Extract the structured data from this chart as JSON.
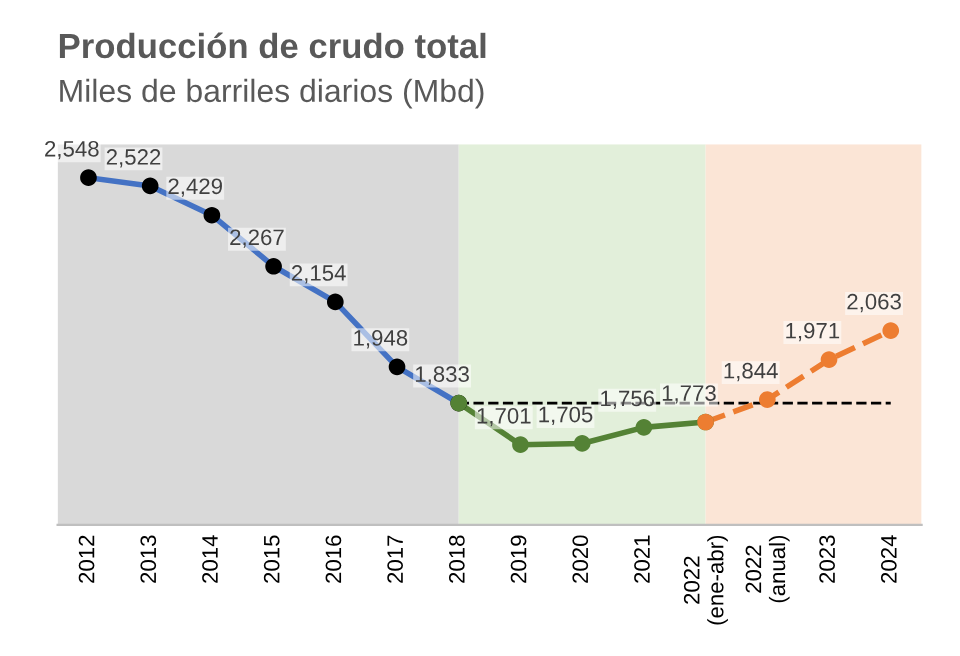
{
  "chart_data": {
    "type": "line",
    "title": "Producción de crudo total",
    "subtitle": "Miles de barriles diarios (Mbd)",
    "categories": [
      "2012",
      "2013",
      "2014",
      "2015",
      "2016",
      "2017",
      "2018",
      "2019",
      "2020",
      "2021",
      "2022\n(ene-abr)",
      "2022\n(anual)",
      "2023",
      "2024"
    ],
    "series": [
      {
        "color": "#4472c4",
        "colors": [
          "#000000",
          "#000000",
          "#000000",
          "#000000",
          "#000000",
          "#000000",
          "#000000",
          null,
          null,
          null,
          null,
          null,
          null,
          null
        ],
        "marker": "circle",
        "line_style": "solid",
        "values": [
          2548,
          2522,
          2429,
          2267,
          2154,
          1948,
          1833,
          null,
          null,
          null,
          null,
          null,
          null,
          null
        ],
        "value_labels": [
          "2,548",
          "2,522",
          "2,429",
          "2,267",
          "2,154",
          "1,948",
          "1,833",
          null,
          null,
          null,
          null,
          null,
          null,
          null
        ]
      },
      {
        "color": "#548235",
        "marker": "circle",
        "line_style": "solid",
        "values": [
          null,
          null,
          null,
          null,
          null,
          null,
          1833,
          1701,
          1705,
          1756,
          1773,
          null,
          null,
          null
        ],
        "value_labels": [
          null,
          null,
          null,
          null,
          null,
          null,
          null,
          "1,701",
          "1,705",
          "1,756",
          "1,773",
          null,
          null,
          null
        ]
      },
      {
        "color": "#ed7d31",
        "marker": "circle",
        "line_style": "dashed",
        "values": [
          null,
          null,
          null,
          null,
          null,
          null,
          null,
          null,
          null,
          null,
          1773,
          1844,
          1971,
          2063
        ],
        "value_labels": [
          null,
          null,
          null,
          null,
          null,
          null,
          null,
          null,
          null,
          null,
          null,
          "1,844",
          "1,971",
          "2,063"
        ]
      },
      {
        "color": "#000000",
        "marker": "none",
        "line_style": "dashed",
        "values": [
          null,
          null,
          null,
          null,
          null,
          null,
          1833,
          1833,
          1833,
          1833,
          1833,
          1833,
          1833,
          1833
        ]
      }
    ],
    "bands": [
      {
        "axis": "x",
        "from": "2012",
        "to": "2018",
        "color": "#d9d9d9"
      },
      {
        "axis": "x",
        "from": "2018",
        "to": "2022\n(ene-abr)",
        "color": "#e2efda"
      },
      {
        "axis": "x",
        "from": "2022\n(ene-abr)",
        "to": "2024",
        "color": "#fbe5d6"
      }
    ],
    "grid": false,
    "legend": false,
    "tick_labels": "x"
  }
}
